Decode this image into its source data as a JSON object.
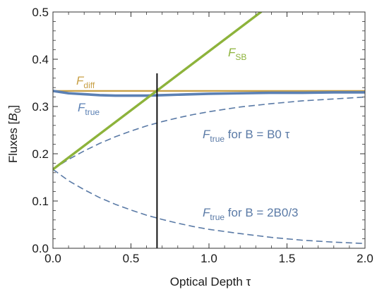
{
  "chart_data": {
    "type": "line",
    "xlabel": "Optical Depth τ",
    "ylabel": "Fluxes [B0]",
    "xlim": [
      0,
      2
    ],
    "ylim": [
      0,
      0.5
    ],
    "x_ticks": [
      "0.0",
      "0.5",
      "1.0",
      "1.5",
      "2.0"
    ],
    "y_ticks": [
      "0.0",
      "0.1",
      "0.2",
      "0.3",
      "0.4",
      "0.5"
    ],
    "grid": false,
    "vertical_marker": {
      "x": 0.667
    },
    "series": [
      {
        "name": "F_diff",
        "label_main": "F",
        "label_sub": "diff",
        "color": "#c8a046",
        "style": "solid",
        "x": [
          0,
          2
        ],
        "y": [
          0.333,
          0.333
        ]
      },
      {
        "name": "F_true",
        "label_main": "F",
        "label_sub": "true",
        "color": "#5b80b4",
        "style": "solid",
        "x": [
          0,
          0.1,
          0.2,
          0.3,
          0.4,
          0.5,
          0.6,
          0.7,
          0.8,
          1.0,
          1.2,
          1.4,
          1.6,
          1.8,
          2.0
        ],
        "y": [
          0.333,
          0.328,
          0.326,
          0.324,
          0.323,
          0.323,
          0.323,
          0.324,
          0.325,
          0.327,
          0.328,
          0.329,
          0.329,
          0.33,
          0.33
        ]
      },
      {
        "name": "F_SB",
        "label_main": "F",
        "label_sub": "SB",
        "color": "#8db33b",
        "style": "solid",
        "x": [
          0,
          1.333
        ],
        "y": [
          0.167,
          0.5
        ]
      },
      {
        "name": "F_true for B = B0 τ",
        "label_main": "F",
        "label_sub": "true",
        "label_rest": " for B = B0 τ",
        "color": "#5a7aa6",
        "style": "dashed",
        "x": [
          0,
          0.1,
          0.2,
          0.3,
          0.4,
          0.5,
          0.6,
          0.7,
          0.8,
          0.9,
          1.0,
          1.2,
          1.4,
          1.6,
          1.8,
          2.0
        ],
        "y": [
          0.167,
          0.188,
          0.206,
          0.222,
          0.236,
          0.248,
          0.259,
          0.268,
          0.276,
          0.283,
          0.289,
          0.299,
          0.306,
          0.312,
          0.316,
          0.32
        ]
      },
      {
        "name": "F_true for B = 2B0/3",
        "label_main": "F",
        "label_sub": "true",
        "label_rest": " for B = 2B0/3",
        "color": "#5a7aa6",
        "style": "dashed",
        "x": [
          0,
          0.1,
          0.2,
          0.3,
          0.4,
          0.5,
          0.6,
          0.7,
          0.8,
          0.9,
          1.0,
          1.2,
          1.4,
          1.6,
          1.8,
          2.0
        ],
        "y": [
          0.167,
          0.143,
          0.124,
          0.107,
          0.093,
          0.081,
          0.07,
          0.061,
          0.053,
          0.046,
          0.04,
          0.031,
          0.023,
          0.017,
          0.013,
          0.01
        ]
      }
    ]
  }
}
